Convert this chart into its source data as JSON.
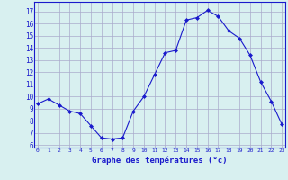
{
  "hours": [
    0,
    1,
    2,
    3,
    4,
    5,
    6,
    7,
    8,
    9,
    10,
    11,
    12,
    13,
    14,
    15,
    16,
    17,
    18,
    19,
    20,
    21,
    22,
    23
  ],
  "temps": [
    9.4,
    9.8,
    9.3,
    8.8,
    8.6,
    7.6,
    6.6,
    6.5,
    6.6,
    8.8,
    10.0,
    11.8,
    13.6,
    13.8,
    16.3,
    16.5,
    17.1,
    16.6,
    15.4,
    14.8,
    13.4,
    11.2,
    9.6,
    7.7
  ],
  "line_color": "#1a1acc",
  "marker": "D",
  "marker_size": 2.0,
  "bg_color": "#d8f0f0",
  "grid_color": "#aaaacc",
  "ylim": [
    5.8,
    17.8
  ],
  "yticks": [
    6,
    7,
    8,
    9,
    10,
    11,
    12,
    13,
    14,
    15,
    16,
    17
  ],
  "xlabel": "Graphe des températures (°c)",
  "xlabel_color": "#1a1acc",
  "axis_color": "#1a1acc",
  "tick_color": "#1a1acc"
}
